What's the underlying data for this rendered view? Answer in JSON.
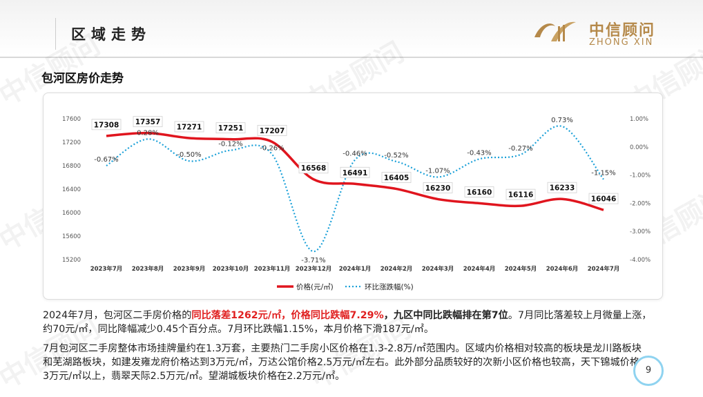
{
  "header": {
    "section_title": "区域走势"
  },
  "logo": {
    "cn": "中信顾问",
    "en": "ZHONG XIN"
  },
  "watermark": "中信顾问",
  "chart_title": "包河区房价走势",
  "chart_data": {
    "type": "line",
    "categories": [
      "2023年7月",
      "2023年8月",
      "2023年9月",
      "2023年10月",
      "2023年11月",
      "2023年12月",
      "2024年1月",
      "2024年2月",
      "2024年3月",
      "2024年4月",
      "2024年5月",
      "2024年6月",
      "2024年7月"
    ],
    "series": [
      {
        "name": "价格(元/㎡)",
        "axis": "left",
        "color": "#e0151e",
        "values": [
          17308,
          17357,
          17271,
          17251,
          17207,
          16568,
          16491,
          16405,
          16230,
          16160,
          16116,
          16233,
          16046
        ],
        "labels": [
          "17308",
          "17357",
          "17271",
          "17251",
          "17207",
          "16568",
          "16491",
          "16405",
          "16230",
          "16160",
          "16116",
          "16233",
          "16046"
        ]
      },
      {
        "name": "环比涨跌幅(%)",
        "axis": "right",
        "color": "#1aa0d8",
        "values": [
          -0.67,
          0.28,
          -0.5,
          -0.12,
          -0.26,
          -3.71,
          -0.46,
          -0.52,
          -1.07,
          -0.43,
          -0.27,
          0.73,
          -1.15
        ],
        "labels": [
          "-0.67%",
          "0.28%",
          "-0.50%",
          "-0.12%",
          "-0.26%",
          "-3.71%",
          "-0.46%",
          "-0.52%",
          "-1.07%",
          "-0.43%",
          "-0.27%",
          "0.73%",
          "-1.15%"
        ]
      }
    ],
    "left_axis": {
      "ticks": [
        15200,
        15600,
        16000,
        16400,
        16800,
        17200,
        17600
      ],
      "range": [
        15200,
        17600
      ]
    },
    "right_axis": {
      "ticks": [
        "1.00%",
        "0.00%",
        "-1.00%",
        "-2.00%",
        "-3.00%",
        "-4.00%"
      ],
      "values": [
        1,
        0,
        -1,
        -2,
        -3,
        -4
      ],
      "range": [
        -4,
        1
      ]
    },
    "legend_position": "bottom"
  },
  "paragraph1": {
    "a": "2024年7月，包河区二手房价格的",
    "b": "同比落差1262元/㎡，价格同比跌幅7.29%",
    "c": "，九区中同比跌幅排在第7位",
    "d": "。7月同比落差较上月微量上涨，约70元/㎡，同比降幅减少0.45个百分点。7月环比跌幅1.15%，本月价格下滑187元/㎡。"
  },
  "paragraph2": "7月包河区二手房整体市场挂牌量约在1.3万套，主要热门二手房小区价格在1.3-2.8万/㎡范围内。区域内价格相对较高的板块是龙川路板块和芜湖路板块，如建发雍龙府价格达到3万元/㎡，万达公馆价格2.5万元/㎡左右。此外部分品质较好的次新小区价格也较高，天下锦城价格3万元/㎡以上，翡翠天际2.5万元/㎡。望湖城板块价格在2.2万元/㎡。",
  "page_number": "9"
}
